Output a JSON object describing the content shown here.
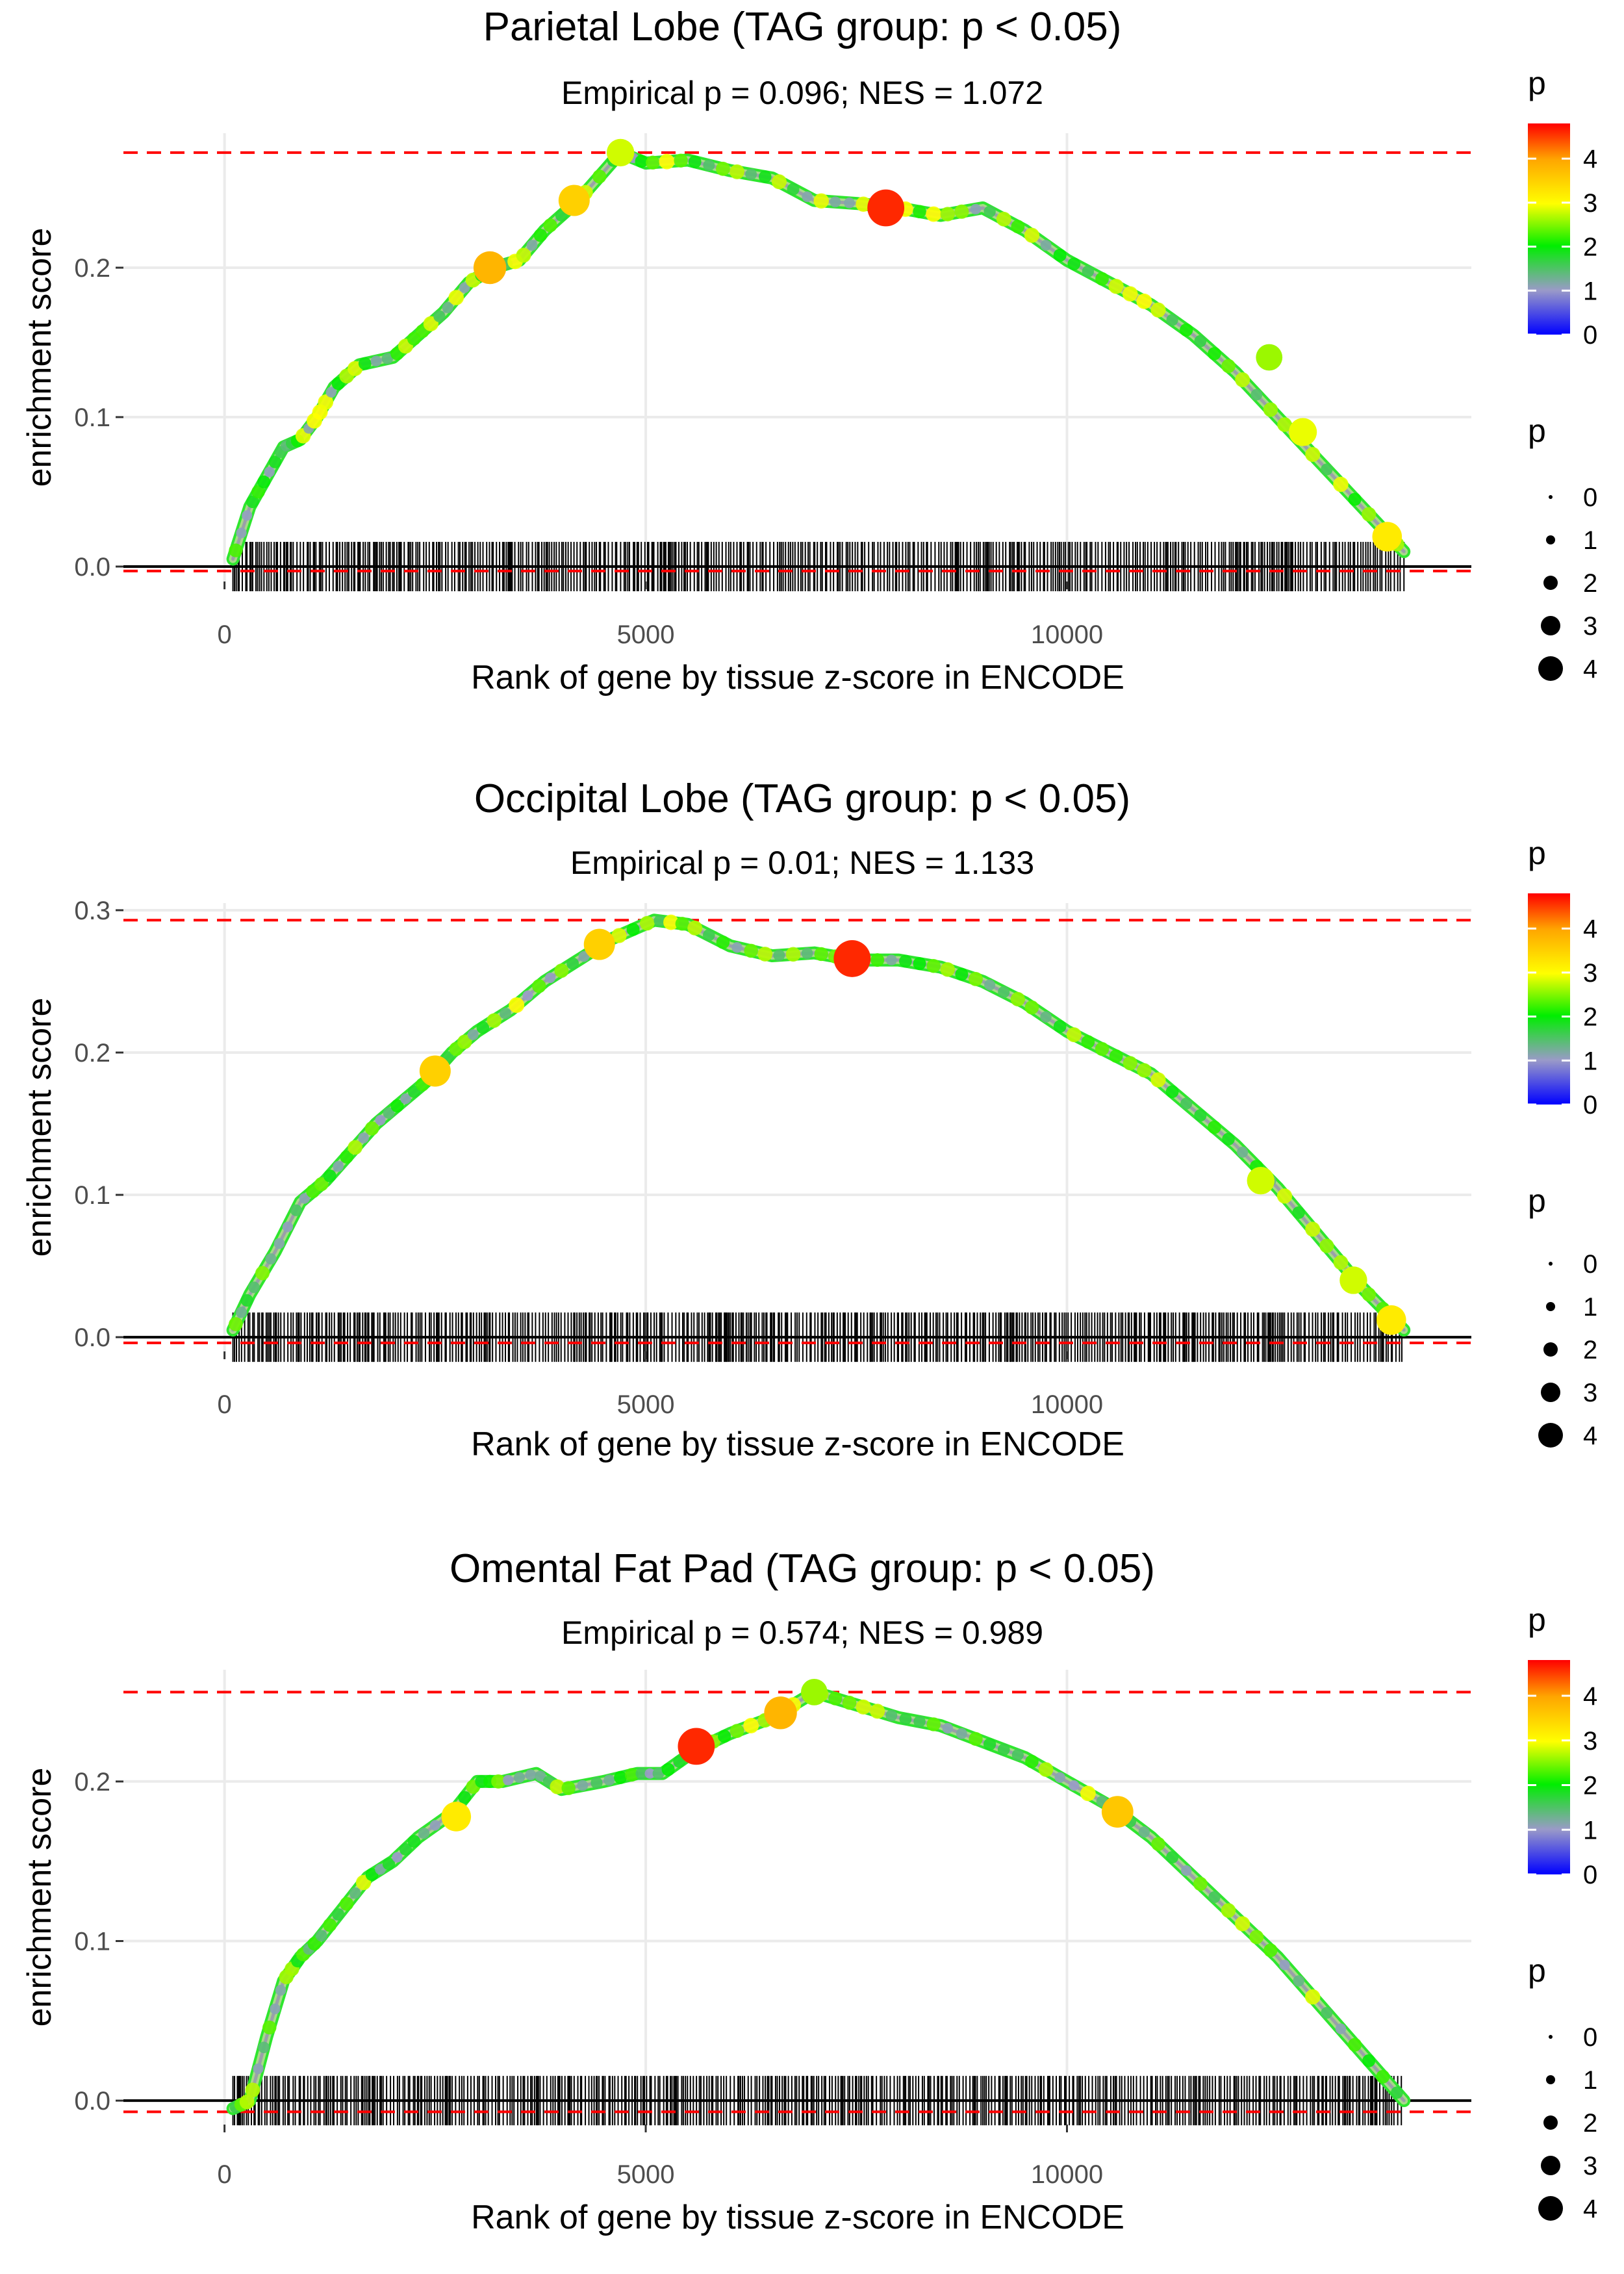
{
  "chart_data": [
    {
      "type": "line",
      "title": "Parietal Lobe (TAG group: p < 0.05)",
      "subtitle": "Empirical p = 0.096; NES = 1.072",
      "xlabel": "Rank of gene by tissue z-score in ENCODE",
      "ylabel": "enrichment score",
      "xlim": [
        -1200,
        14800
      ],
      "ylim": [
        -0.01,
        0.29
      ],
      "x_ticks": [
        0,
        5000,
        10000
      ],
      "x_tick_labels": [
        "0",
        "5000",
        "10000"
      ],
      "y_ticks": [
        0,
        0.1,
        0.2
      ],
      "y_tick_labels": [
        "0.0",
        "0.1",
        "0.2"
      ],
      "max_es": 0.277,
      "min_es": -0.003,
      "gene_span": [
        100,
        14000
      ],
      "curve": {
        "x": [
          100,
          300,
          500,
          700,
          900,
          1100,
          1300,
          1600,
          2000,
          2300,
          2600,
          2900,
          3200,
          3500,
          3800,
          4200,
          4700,
          5000,
          5500,
          6000,
          6500,
          7000,
          7500,
          8000,
          8500,
          9000,
          9500,
          10000,
          10500,
          11000,
          11500,
          12000,
          12500,
          13000,
          13500,
          14000
        ],
        "y": [
          0.005,
          0.04,
          0.06,
          0.08,
          0.085,
          0.1,
          0.12,
          0.135,
          0.14,
          0.155,
          0.17,
          0.19,
          0.2,
          0.205,
          0.225,
          0.245,
          0.277,
          0.27,
          0.272,
          0.265,
          0.26,
          0.245,
          0.243,
          0.24,
          0.235,
          0.24,
          0.225,
          0.205,
          0.19,
          0.175,
          0.155,
          0.13,
          0.1,
          0.07,
          0.04,
          0.01
        ]
      },
      "highlights": [
        {
          "x": 3150,
          "y": 0.2,
          "p": 3.8
        },
        {
          "x": 4150,
          "y": 0.245,
          "p": 3.5
        },
        {
          "x": 4700,
          "y": 0.277,
          "p": 2.8
        },
        {
          "x": 7850,
          "y": 0.24,
          "p": 4.6
        },
        {
          "x": 12400,
          "y": 0.14,
          "p": 2.6
        },
        {
          "x": 12800,
          "y": 0.09,
          "p": 2.9
        },
        {
          "x": 13800,
          "y": 0.02,
          "p": 3.2
        }
      ],
      "p_legend_color": {
        "title": "p",
        "labels": [
          "4",
          "3",
          "2",
          "1",
          "0"
        ],
        "max": 4.8
      },
      "p_legend_size": {
        "title": "p",
        "labels": [
          "0",
          "1",
          "2",
          "3",
          "4"
        ]
      }
    },
    {
      "type": "line",
      "title": "Occipital Lobe (TAG group: p < 0.05)",
      "subtitle": "Empirical p = 0.01; NES = 1.133",
      "xlabel": "Rank of gene by tissue z-score in ENCODE",
      "ylabel": "enrichment score",
      "xlim": [
        -1200,
        14800
      ],
      "ylim": [
        -0.01,
        0.305
      ],
      "x_ticks": [
        0,
        5000,
        10000
      ],
      "x_tick_labels": [
        "0",
        "5000",
        "10000"
      ],
      "y_ticks": [
        0,
        0.1,
        0.2,
        0.3
      ],
      "y_tick_labels": [
        "0.0",
        "0.1",
        "0.2",
        "0.3"
      ],
      "max_es": 0.293,
      "min_es": -0.004,
      "gene_span": [
        100,
        14000
      ],
      "curve": {
        "x": [
          100,
          300,
          600,
          900,
          1200,
          1500,
          1800,
          2100,
          2400,
          2700,
          3000,
          3400,
          3800,
          4200,
          4600,
          5100,
          5500,
          6000,
          6500,
          7000,
          7500,
          8000,
          8500,
          9000,
          9500,
          10000,
          10500,
          11000,
          11500,
          12000,
          12500,
          13000,
          13500,
          14000
        ],
        "y": [
          0.005,
          0.03,
          0.06,
          0.095,
          0.11,
          0.13,
          0.15,
          0.165,
          0.18,
          0.2,
          0.215,
          0.23,
          0.25,
          0.265,
          0.28,
          0.293,
          0.29,
          0.275,
          0.268,
          0.27,
          0.265,
          0.265,
          0.26,
          0.25,
          0.235,
          0.215,
          0.2,
          0.185,
          0.16,
          0.135,
          0.105,
          0.07,
          0.035,
          0.005
        ]
      },
      "highlights": [
        {
          "x": 2500,
          "y": 0.187,
          "p": 3.5
        },
        {
          "x": 4450,
          "y": 0.276,
          "p": 3.5
        },
        {
          "x": 7450,
          "y": 0.266,
          "p": 4.6
        },
        {
          "x": 12300,
          "y": 0.11,
          "p": 2.8
        },
        {
          "x": 13400,
          "y": 0.04,
          "p": 2.8
        },
        {
          "x": 13850,
          "y": 0.012,
          "p": 3.2
        }
      ],
      "p_legend_color": {
        "title": "p",
        "labels": [
          "4",
          "3",
          "2",
          "1",
          "0"
        ],
        "max": 4.8
      },
      "p_legend_size": {
        "title": "p",
        "labels": [
          "0",
          "1",
          "2",
          "3",
          "4"
        ]
      }
    },
    {
      "type": "line",
      "title": "Omental Fat Pad (TAG group: p < 0.05)",
      "subtitle": "Empirical p = 0.574; NES = 0.989",
      "xlabel": "Rank of gene by tissue z-score in ENCODE",
      "ylabel": "enrichment score",
      "xlim": [
        -1200,
        14800
      ],
      "ylim": [
        -0.015,
        0.27
      ],
      "x_ticks": [
        0,
        5000,
        10000
      ],
      "x_tick_labels": [
        "0",
        "5000",
        "10000"
      ],
      "y_ticks": [
        0,
        0.1,
        0.2
      ],
      "y_tick_labels": [
        "0.0",
        "0.1",
        "0.2"
      ],
      "max_es": 0.256,
      "min_es": -0.007,
      "gene_span": [
        100,
        14000
      ],
      "curve": {
        "x": [
          100,
          300,
          500,
          700,
          900,
          1100,
          1400,
          1700,
          2000,
          2300,
          2700,
          3000,
          3300,
          3700,
          4000,
          4500,
          4900,
          5200,
          5600,
          6000,
          6500,
          7000,
          7500,
          8000,
          8500,
          9000,
          9500,
          10000,
          10500,
          11000,
          11500,
          12000,
          12500,
          13000,
          13500,
          14000
        ],
        "y": [
          -0.005,
          0.0,
          0.04,
          0.075,
          0.09,
          0.1,
          0.12,
          0.14,
          0.15,
          0.165,
          0.18,
          0.2,
          0.2,
          0.205,
          0.195,
          0.2,
          0.205,
          0.205,
          0.22,
          0.23,
          0.24,
          0.256,
          0.248,
          0.24,
          0.235,
          0.225,
          0.215,
          0.2,
          0.185,
          0.165,
          0.14,
          0.115,
          0.09,
          0.06,
          0.03,
          0.0
        ]
      },
      "highlights": [
        {
          "x": 2750,
          "y": 0.178,
          "p": 3.2
        },
        {
          "x": 5600,
          "y": 0.222,
          "p": 4.6
        },
        {
          "x": 6600,
          "y": 0.243,
          "p": 3.8
        },
        {
          "x": 7000,
          "y": 0.256,
          "p": 2.6
        },
        {
          "x": 10600,
          "y": 0.181,
          "p": 3.6
        }
      ],
      "p_legend_color": {
        "title": "p",
        "labels": [
          "4",
          "3",
          "2",
          "1",
          "0"
        ],
        "max": 4.8
      },
      "p_legend_size": {
        "title": "p",
        "labels": [
          "0",
          "1",
          "2",
          "3",
          "4"
        ]
      }
    }
  ]
}
